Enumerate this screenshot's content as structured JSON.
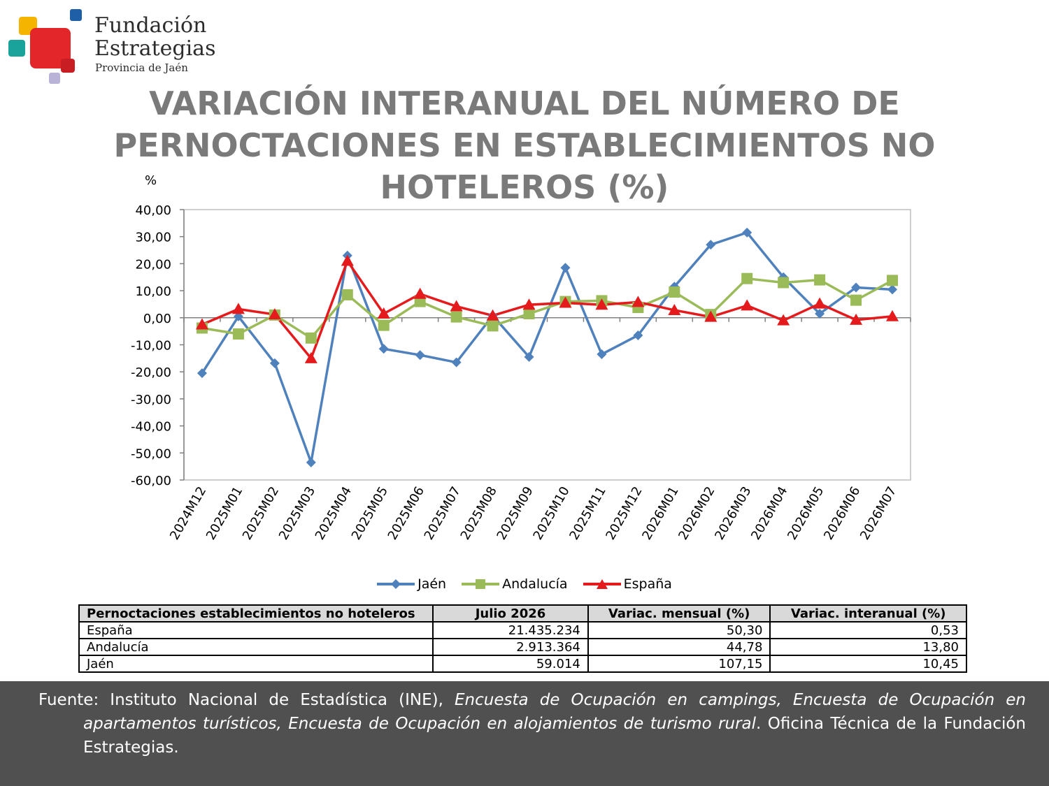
{
  "logo": {
    "name_line1": "Fundación",
    "name_line2": "Estrategias",
    "subtitle": "Provincia de Jaén"
  },
  "chart_data": {
    "type": "line",
    "title": "VARIACIÓN INTERANUAL DEL NÚMERO DE PERNOCTACIONES EN ESTABLECIMIENTOS NO HOTELEROS (%)",
    "ylabel": "%",
    "xlabel": "",
    "ylim": [
      -60,
      40
    ],
    "yticks": [
      "40,00",
      "30,00",
      "20,00",
      "10,00",
      "0,00",
      "-10,00",
      "-20,00",
      "-30,00",
      "-40,00",
      "-50,00",
      "-60,00"
    ],
    "ytick_values": [
      40,
      30,
      20,
      10,
      0,
      -10,
      -20,
      -30,
      -40,
      -50,
      -60
    ],
    "categories": [
      "2024M12",
      "2025M01",
      "2025M02",
      "2025M03",
      "2025M04",
      "2025M05",
      "2025M06",
      "2025M07",
      "2025M08",
      "2025M09",
      "2025M10",
      "2025M11",
      "2025M12",
      "2026M01",
      "2026M02",
      "2026M03",
      "2026M04",
      "2026M05",
      "2026M06",
      "2026M07"
    ],
    "legend_position": "bottom",
    "grid": false,
    "series": [
      {
        "name": "Jaén",
        "color": "#4f81bd",
        "marker": "diamond",
        "values": [
          -20.5,
          0.5,
          -16.8,
          -53.5,
          23.0,
          -11.5,
          -13.8,
          -16.5,
          0.8,
          -14.5,
          18.5,
          -13.5,
          -6.5,
          11.5,
          27.0,
          31.5,
          15.0,
          1.5,
          11.2,
          10.45
        ]
      },
      {
        "name": "Andalucía",
        "color": "#9bbb59",
        "marker": "square",
        "values": [
          -3.8,
          -6.0,
          1.0,
          -7.5,
          8.5,
          -2.8,
          6.0,
          0.3,
          -3.0,
          1.5,
          6.0,
          6.3,
          3.8,
          9.5,
          1.2,
          14.5,
          13.0,
          14.0,
          6.5,
          13.8
        ]
      },
      {
        "name": "España",
        "color": "#e41a1c",
        "marker": "triangle",
        "values": [
          -2.5,
          3.2,
          1.2,
          -15.0,
          21.0,
          1.5,
          8.8,
          4.2,
          0.8,
          4.8,
          5.5,
          4.8,
          5.8,
          2.8,
          0.3,
          4.5,
          -1.0,
          5.2,
          -0.8,
          0.53
        ]
      }
    ]
  },
  "table": {
    "headers": [
      "Pernoctaciones establecimientos no hoteleros",
      "Julio 2026",
      "Variac. mensual (%)",
      "Variac. interanual (%)"
    ],
    "rows": [
      [
        "España",
        "21.435.234",
        "50,30",
        "0,53"
      ],
      [
        "Andalucía",
        "2.913.364",
        "44,78",
        "13,80"
      ],
      [
        "Jaén",
        "59.014",
        "107,15",
        "10,45"
      ]
    ]
  },
  "footer": {
    "prefix": "Fuente: Instituto Nacional de Estadística (INE), ",
    "italic": "Encuesta de Ocupación en campings, Encuesta de Ocupación en apartamentos turísticos, Encuesta de Ocupación en alojamientos de turismo rural",
    "suffix": ". Oficina Técnica de la Fundación Estrategias."
  }
}
